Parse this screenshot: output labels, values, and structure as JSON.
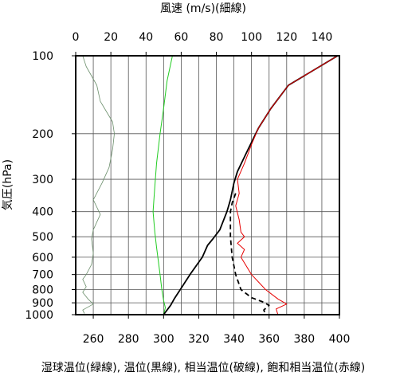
{
  "chart_data": {
    "type": "line",
    "title": "",
    "top_axis": {
      "label": "風速 (m/s)(細線)",
      "range": [
        0,
        150
      ],
      "ticks": [
        0,
        20,
        40,
        60,
        80,
        100,
        120,
        140
      ]
    },
    "bottom_axis": {
      "label": "湿球温位(緑線), 温位(黒線), 相当温位(破線), 飽和相当温位(赤線)",
      "range": [
        250,
        400
      ],
      "ticks": [
        260,
        280,
        300,
        320,
        340,
        360,
        380,
        400
      ]
    },
    "y_axis": {
      "label": "気圧(hPa)",
      "scale": "log",
      "reversed": true,
      "range": [
        1000,
        100
      ],
      "ticks": [
        100,
        200,
        300,
        400,
        500,
        600,
        700,
        800,
        900,
        1000
      ]
    },
    "grid": true,
    "series": [
      {
        "axis": "top",
        "color": "#6b8e6b",
        "style": "thin",
        "points": [
          [
            4,
            100
          ],
          [
            6,
            110
          ],
          [
            12,
            130
          ],
          [
            14,
            150
          ],
          [
            21,
            180
          ],
          [
            22,
            200
          ],
          [
            21,
            230
          ],
          [
            19,
            270
          ],
          [
            15,
            310
          ],
          [
            10,
            360
          ],
          [
            14,
            410
          ],
          [
            10,
            470
          ],
          [
            9,
            510
          ],
          [
            10,
            580
          ],
          [
            9,
            640
          ],
          [
            6,
            700
          ],
          [
            4,
            730
          ],
          [
            6,
            780
          ],
          [
            4,
            820
          ],
          [
            7,
            870
          ],
          [
            10,
            910
          ],
          [
            4,
            960
          ],
          [
            5,
            990
          ]
        ]
      },
      {
        "axis": "bottom",
        "color": "#22cc22",
        "style": "solid",
        "points": [
          [
            305,
            100
          ],
          [
            302,
            125
          ],
          [
            300,
            160
          ],
          [
            298,
            200
          ],
          [
            296,
            260
          ],
          [
            295,
            320
          ],
          [
            294,
            400
          ],
          [
            295,
            480
          ],
          [
            296,
            550
          ],
          [
            297,
            620
          ],
          [
            298,
            700
          ],
          [
            299,
            800
          ],
          [
            300,
            880
          ],
          [
            301,
            940
          ],
          [
            300,
            1000
          ]
        ]
      },
      {
        "axis": "bottom",
        "color": "#000000",
        "style": "solid",
        "points": [
          [
            399,
            100
          ],
          [
            371,
            130
          ],
          [
            361,
            160
          ],
          [
            354,
            190
          ],
          [
            348,
            230
          ],
          [
            342,
            280
          ],
          [
            340,
            310
          ],
          [
            338,
            360
          ],
          [
            336,
            400
          ],
          [
            332,
            470
          ],
          [
            328,
            510
          ],
          [
            325,
            540
          ],
          [
            322,
            600
          ],
          [
            315,
            700
          ],
          [
            310,
            790
          ],
          [
            306,
            870
          ],
          [
            304,
            920
          ],
          [
            300,
            1000
          ]
        ]
      },
      {
        "axis": "bottom",
        "color": "#000000",
        "style": "dashed",
        "points": [
          [
            341,
            340
          ],
          [
            339,
            370
          ],
          [
            338,
            400
          ],
          [
            338,
            500
          ],
          [
            339,
            600
          ],
          [
            341,
            700
          ],
          [
            344,
            800
          ],
          [
            350,
            860
          ],
          [
            356,
            890
          ],
          [
            360,
            920
          ],
          [
            357,
            960
          ],
          [
            358,
            1000
          ]
        ]
      },
      {
        "axis": "bottom",
        "color": "#e60000",
        "style": "solid",
        "points": [
          [
            399,
            100
          ],
          [
            371,
            130
          ],
          [
            361,
            160
          ],
          [
            354,
            190
          ],
          [
            350,
            220
          ],
          [
            346,
            260
          ],
          [
            342,
            300
          ],
          [
            343,
            340
          ],
          [
            341,
            380
          ],
          [
            343,
            430
          ],
          [
            344,
            480
          ],
          [
            346,
            500
          ],
          [
            342,
            530
          ],
          [
            346,
            560
          ],
          [
            344,
            600
          ],
          [
            350,
            700
          ],
          [
            358,
            800
          ],
          [
            365,
            870
          ],
          [
            370,
            910
          ],
          [
            364,
            950
          ],
          [
            365,
            1000
          ]
        ]
      }
    ]
  }
}
